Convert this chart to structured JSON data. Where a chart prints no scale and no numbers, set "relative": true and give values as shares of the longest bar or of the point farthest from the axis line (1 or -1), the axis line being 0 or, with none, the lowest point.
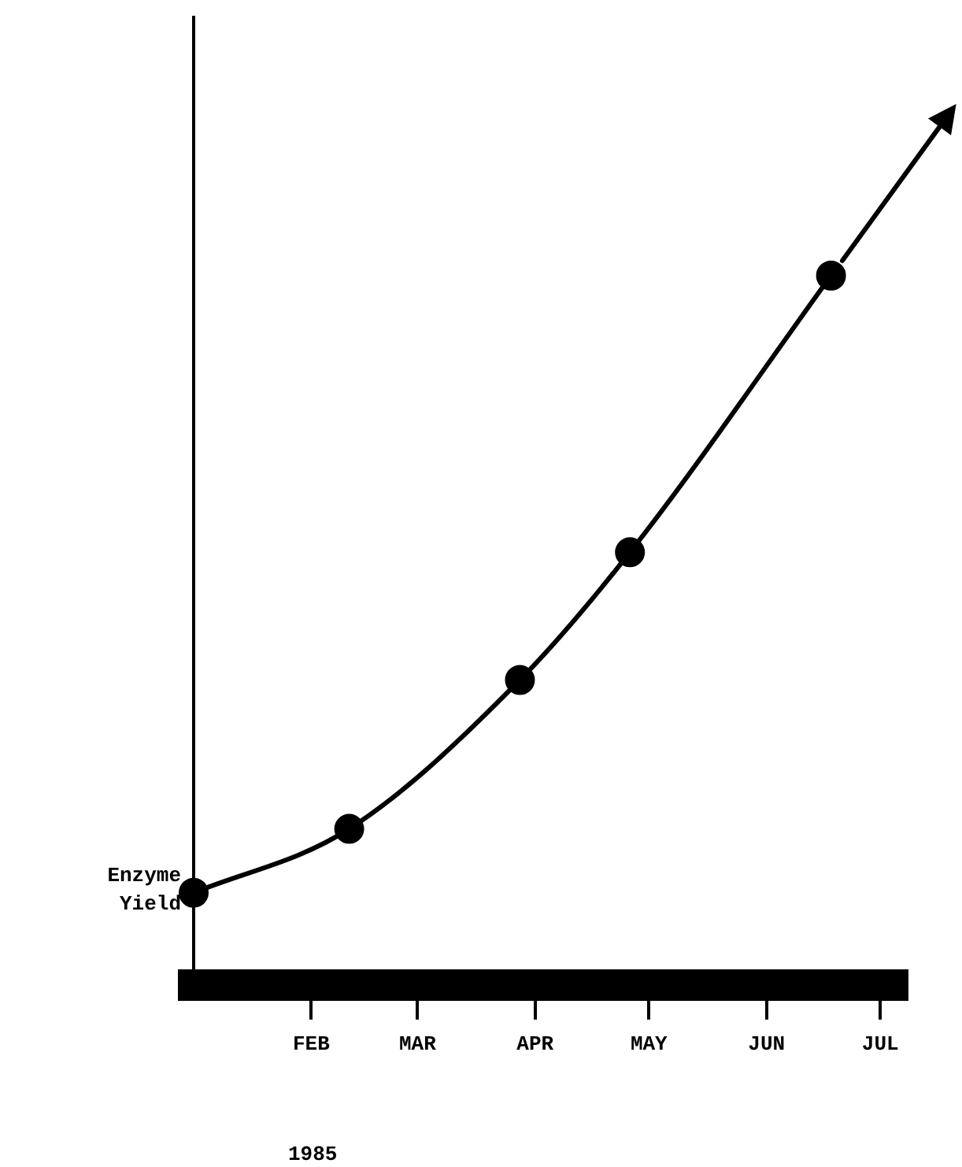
{
  "chart_data": {
    "type": "line",
    "relative": true,
    "xlabel": null,
    "ylabel": "Enzyme\nYield",
    "x": [
      "--01-01",
      "--02-11",
      "--03-28",
      "--04-26",
      "--06-18"
    ],
    "xlim": [
      "--01-01",
      "--07-08"
    ],
    "xticks": [
      {
        "value": "--02-01",
        "label": "FEB"
      },
      {
        "value": "--03-01",
        "label": "MAR"
      },
      {
        "value": "--04-01",
        "label": "APR"
      },
      {
        "value": "--05-01",
        "label": "MAY"
      },
      {
        "value": "--06-01",
        "label": "JUN"
      },
      {
        "value": "--07-01",
        "label": "JUL"
      }
    ],
    "series": [
      {
        "color": "#000000",
        "values": [
          0.13,
          0.22,
          0.43,
          0.61,
          1.0
        ]
      }
    ],
    "annotations": [
      "1985"
    ],
    "marker": "circle",
    "line_style": "solid",
    "grid": false,
    "legend": false
  }
}
